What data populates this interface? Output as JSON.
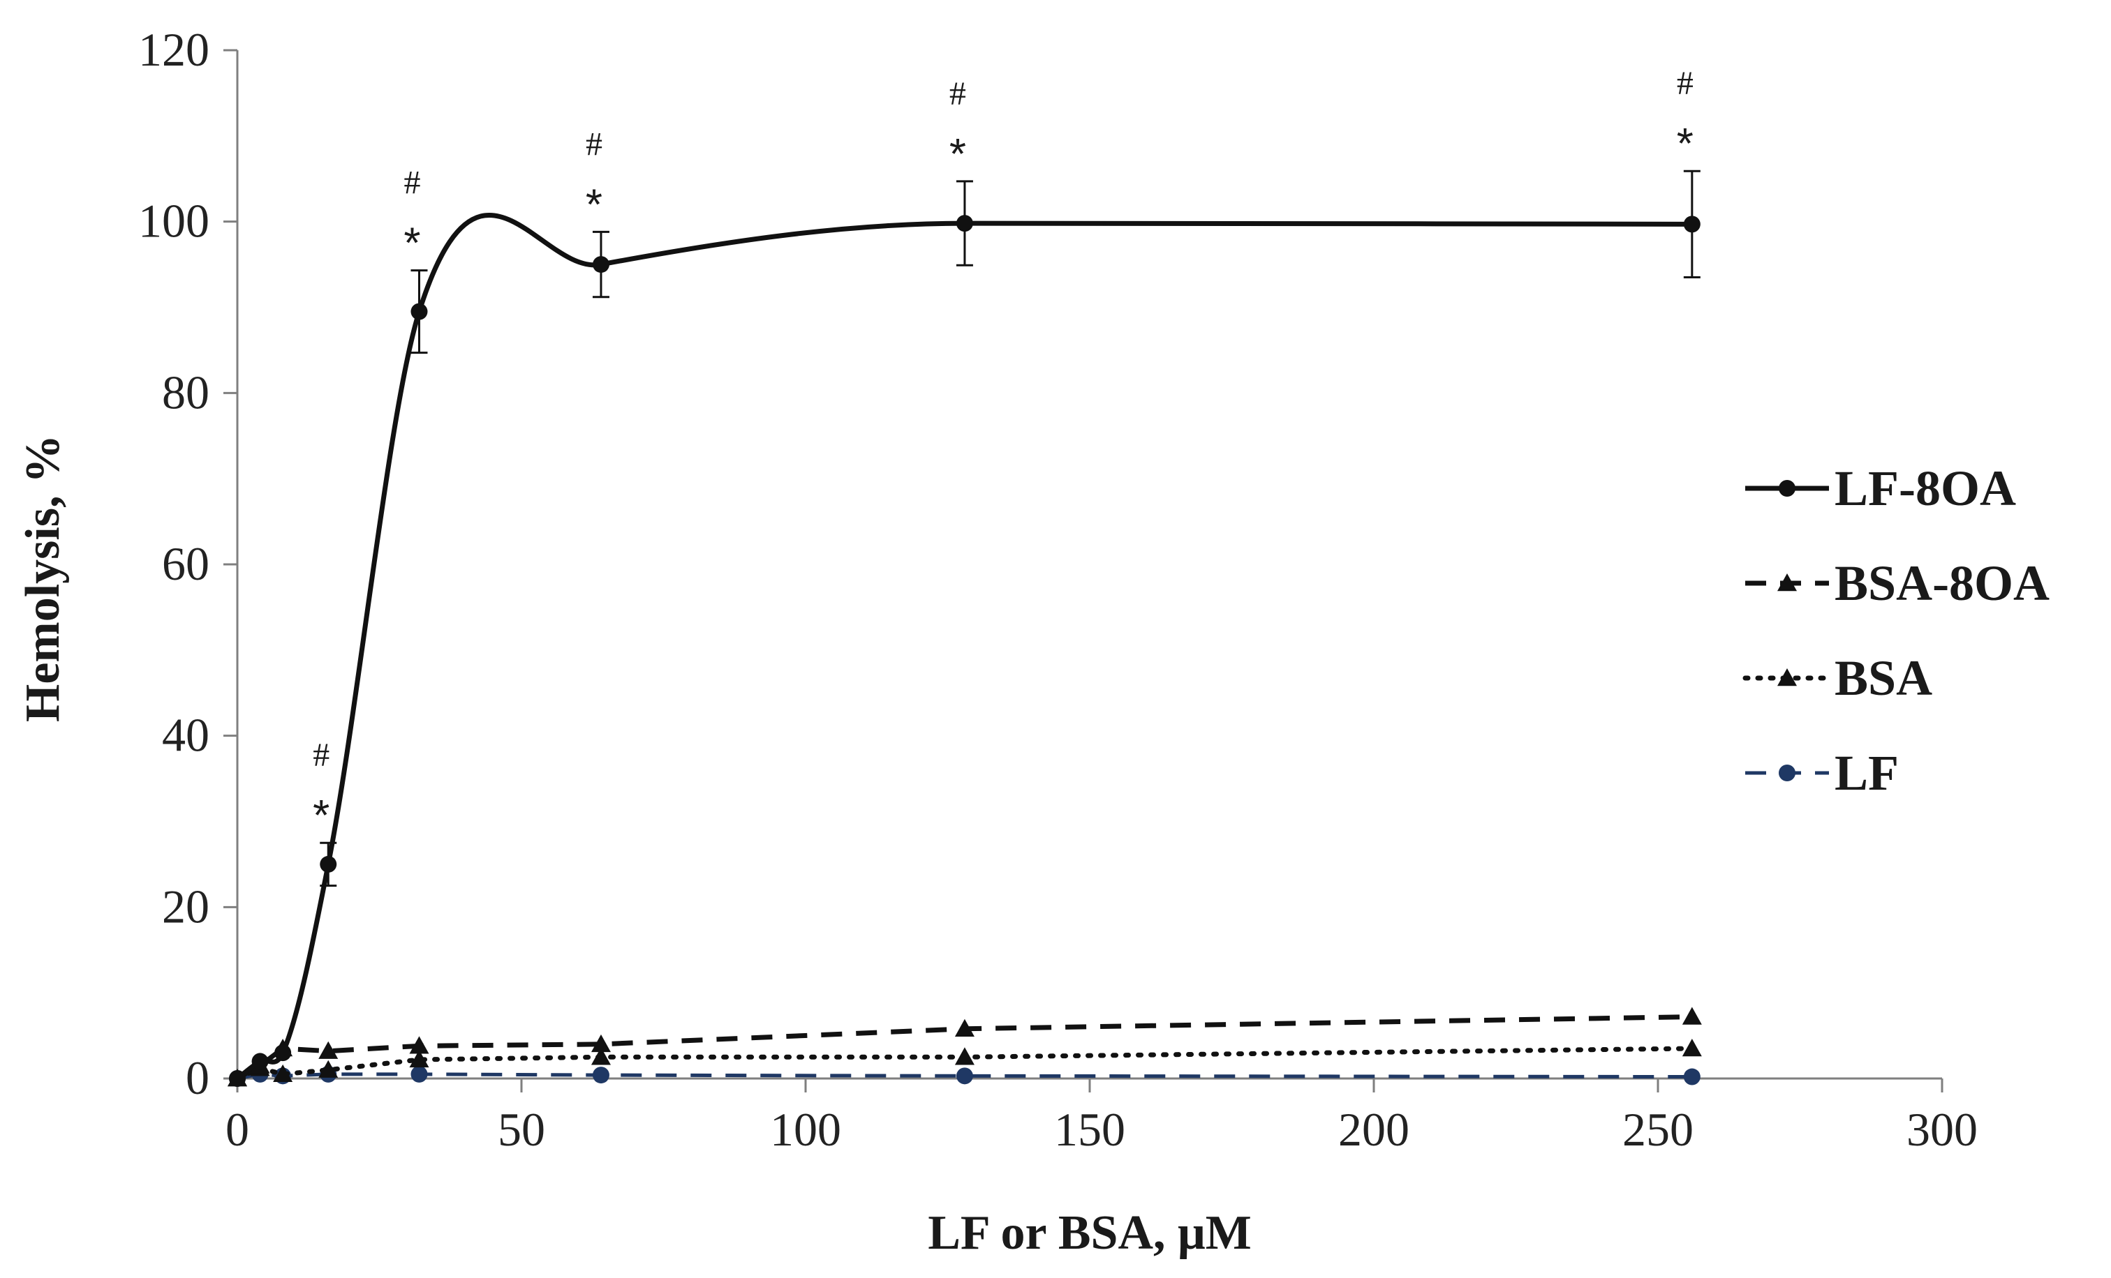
{
  "chart_data": {
    "type": "line",
    "title": "",
    "xlabel": "LF or BSA, μM",
    "ylabel": "Hemolysis, %",
    "xlim": [
      0,
      300
    ],
    "ylim": [
      0,
      120
    ],
    "xticks": [
      0,
      50,
      100,
      150,
      200,
      250,
      300
    ],
    "yticks": [
      0,
      20,
      40,
      60,
      80,
      100,
      120
    ],
    "xtick_labels": [
      "0",
      "50",
      "100",
      "150",
      "200",
      "250",
      "300"
    ],
    "ytick_labels": [
      "0",
      "20",
      "40",
      "60",
      "80",
      "100",
      "120"
    ],
    "grid": false,
    "legend_position": "right",
    "series": [
      {
        "name": "LF-8OA",
        "color": "#111111",
        "line_style": "solid",
        "marker": "circle",
        "smooth": true,
        "x": [
          0,
          4,
          8,
          16,
          32,
          64,
          128,
          256
        ],
        "y": [
          0,
          2,
          3,
          25,
          89.5,
          95,
          99.8,
          99.7
        ],
        "error": [
          0,
          0,
          0,
          2.5,
          4.8,
          3.8,
          4.9,
          6.2
        ]
      },
      {
        "name": "BSA-8OA",
        "color": "#111111",
        "line_style": "dashed",
        "marker": "triangle",
        "smooth": false,
        "x": [
          0,
          4,
          8,
          16,
          32,
          64,
          128,
          256
        ],
        "y": [
          0,
          1.5,
          3.5,
          3.2,
          3.8,
          4,
          5.8,
          7.2
        ],
        "error": []
      },
      {
        "name": "BSA",
        "color": "#111111",
        "line_style": "dotted",
        "marker": "triangle",
        "smooth": false,
        "x": [
          0,
          4,
          8,
          16,
          32,
          64,
          128,
          256
        ],
        "y": [
          0,
          1.2,
          0.5,
          1,
          2.2,
          2.5,
          2.5,
          3.5
        ],
        "error": []
      },
      {
        "name": "LF",
        "color": "#1f3864",
        "line_style": "dashed",
        "marker": "circle",
        "smooth": false,
        "x": [
          0,
          4,
          8,
          16,
          32,
          64,
          128,
          256
        ],
        "y": [
          0,
          0.5,
          0.3,
          0.5,
          0.5,
          0.4,
          0.3,
          0.2
        ],
        "error": []
      }
    ],
    "annotations": [
      {
        "x": 16,
        "y": 25,
        "error": 2.5,
        "labels": [
          "#",
          "*"
        ]
      },
      {
        "x": 32,
        "y": 89.5,
        "error": 4.8,
        "labels": [
          "#",
          "*"
        ]
      },
      {
        "x": 64,
        "y": 95,
        "error": 3.8,
        "labels": [
          "#",
          "*"
        ]
      },
      {
        "x": 128,
        "y": 99.8,
        "error": 4.9,
        "labels": [
          "#",
          "*"
        ]
      },
      {
        "x": 256,
        "y": 99.7,
        "error": 6.2,
        "labels": [
          "#",
          "*"
        ]
      }
    ]
  }
}
